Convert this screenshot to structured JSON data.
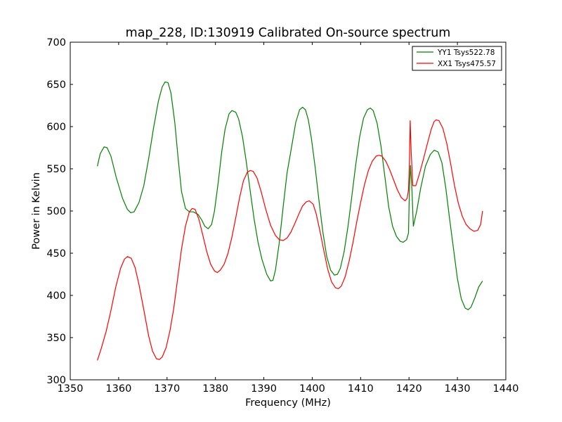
{
  "chart_data": {
    "type": "line",
    "title": "map_228, ID:130919 Calibrated On-source spectrum",
    "xlabel": "Frequency (MHz)",
    "ylabel": "Power in Kelvin",
    "xlim": [
      1350,
      1440
    ],
    "ylim": [
      300,
      700
    ],
    "xticks": [
      "1350",
      "1360",
      "1370",
      "1380",
      "1390",
      "1400",
      "1410",
      "1420",
      "1430",
      "1440"
    ],
    "yticks": [
      "300",
      "350",
      "400",
      "450",
      "500",
      "550",
      "600",
      "650",
      "700"
    ],
    "grid": false,
    "legend_position": "top-right",
    "series": [
      {
        "name": "YY1 Tsys522.78",
        "color": "#008000",
        "points": [
          [
            1355.6,
            553
          ],
          [
            1356.2,
            568
          ],
          [
            1357.0,
            576
          ],
          [
            1357.6,
            575
          ],
          [
            1358.4,
            565
          ],
          [
            1359.5,
            540
          ],
          [
            1360.8,
            515
          ],
          [
            1361.8,
            502
          ],
          [
            1362.5,
            498
          ],
          [
            1363.2,
            499
          ],
          [
            1364.2,
            510
          ],
          [
            1365.2,
            530
          ],
          [
            1366.2,
            562
          ],
          [
            1367.2,
            598
          ],
          [
            1368.2,
            630
          ],
          [
            1369.0,
            647
          ],
          [
            1369.6,
            653
          ],
          [
            1370.2,
            652
          ],
          [
            1370.8,
            640
          ],
          [
            1371.6,
            605
          ],
          [
            1372.3,
            562
          ],
          [
            1373.0,
            523
          ],
          [
            1373.8,
            503
          ],
          [
            1374.6,
            499
          ],
          [
            1375.4,
            499
          ],
          [
            1376.4,
            496
          ],
          [
            1377.2,
            489
          ],
          [
            1377.8,
            482
          ],
          [
            1378.5,
            479
          ],
          [
            1379.2,
            484
          ],
          [
            1379.8,
            500
          ],
          [
            1380.6,
            535
          ],
          [
            1381.3,
            570
          ],
          [
            1382.0,
            597
          ],
          [
            1382.8,
            615
          ],
          [
            1383.4,
            619
          ],
          [
            1384.2,
            617
          ],
          [
            1384.8,
            609
          ],
          [
            1385.6,
            588
          ],
          [
            1386.4,
            557
          ],
          [
            1387.2,
            523
          ],
          [
            1388.0,
            490
          ],
          [
            1388.8,
            463
          ],
          [
            1389.6,
            443
          ],
          [
            1390.6,
            425
          ],
          [
            1391.4,
            417
          ],
          [
            1391.9,
            418
          ],
          [
            1392.4,
            430
          ],
          [
            1393.2,
            463
          ],
          [
            1394.0,
            505
          ],
          [
            1394.8,
            545
          ],
          [
            1395.8,
            578
          ],
          [
            1396.6,
            605
          ],
          [
            1397.4,
            620
          ],
          [
            1398.0,
            623
          ],
          [
            1398.6,
            620
          ],
          [
            1399.2,
            608
          ],
          [
            1399.8,
            587
          ],
          [
            1400.6,
            552
          ],
          [
            1401.4,
            512
          ],
          [
            1402.2,
            475
          ],
          [
            1403.0,
            446
          ],
          [
            1403.8,
            430
          ],
          [
            1404.6,
            424
          ],
          [
            1405.2,
            425
          ],
          [
            1405.8,
            432
          ],
          [
            1406.6,
            452
          ],
          [
            1407.4,
            482
          ],
          [
            1408.2,
            518
          ],
          [
            1409.0,
            555
          ],
          [
            1409.8,
            588
          ],
          [
            1410.6,
            610
          ],
          [
            1411.4,
            620
          ],
          [
            1412.0,
            622
          ],
          [
            1412.6,
            619
          ],
          [
            1413.4,
            604
          ],
          [
            1414.2,
            577
          ],
          [
            1415.0,
            541
          ],
          [
            1415.8,
            505
          ],
          [
            1416.6,
            482
          ],
          [
            1417.4,
            470
          ],
          [
            1418.2,
            464
          ],
          [
            1418.8,
            463
          ],
          [
            1419.5,
            466
          ],
          [
            1419.9,
            474
          ],
          [
            1420.1,
            530
          ],
          [
            1420.3,
            554
          ],
          [
            1420.6,
            525
          ],
          [
            1420.9,
            482
          ],
          [
            1421.6,
            500
          ],
          [
            1422.4,
            527
          ],
          [
            1423.4,
            553
          ],
          [
            1424.4,
            567
          ],
          [
            1425.2,
            572
          ],
          [
            1426.0,
            570
          ],
          [
            1426.8,
            557
          ],
          [
            1427.6,
            527
          ],
          [
            1428.4,
            490
          ],
          [
            1429.2,
            455
          ],
          [
            1430.0,
            420
          ],
          [
            1430.8,
            396
          ],
          [
            1431.6,
            385
          ],
          [
            1432.2,
            383
          ],
          [
            1432.8,
            386
          ],
          [
            1433.6,
            397
          ],
          [
            1434.4,
            410
          ],
          [
            1435.2,
            417
          ]
        ]
      },
      {
        "name": "XX1 Tsys475.57",
        "color": "#ff0000",
        "points": [
          [
            1355.6,
            323
          ],
          [
            1356.4,
            337
          ],
          [
            1357.4,
            357
          ],
          [
            1358.4,
            382
          ],
          [
            1359.4,
            410
          ],
          [
            1360.4,
            432
          ],
          [
            1361.2,
            443
          ],
          [
            1361.8,
            446
          ],
          [
            1362.6,
            444
          ],
          [
            1363.4,
            433
          ],
          [
            1364.2,
            413
          ],
          [
            1365.2,
            383
          ],
          [
            1366.2,
            352
          ],
          [
            1367.0,
            334
          ],
          [
            1367.8,
            325
          ],
          [
            1368.4,
            324
          ],
          [
            1369.0,
            327
          ],
          [
            1369.8,
            338
          ],
          [
            1370.6,
            358
          ],
          [
            1371.4,
            385
          ],
          [
            1372.2,
            420
          ],
          [
            1373.0,
            455
          ],
          [
            1373.8,
            482
          ],
          [
            1374.6,
            499
          ],
          [
            1375.2,
            503
          ],
          [
            1375.8,
            502
          ],
          [
            1376.6,
            490
          ],
          [
            1377.4,
            471
          ],
          [
            1378.2,
            452
          ],
          [
            1379.0,
            437
          ],
          [
            1379.8,
            429
          ],
          [
            1380.4,
            427
          ],
          [
            1381.0,
            430
          ],
          [
            1381.8,
            437
          ],
          [
            1382.6,
            450
          ],
          [
            1383.4,
            469
          ],
          [
            1384.2,
            492
          ],
          [
            1385.0,
            516
          ],
          [
            1385.8,
            536
          ],
          [
            1386.6,
            546
          ],
          [
            1387.2,
            548
          ],
          [
            1387.8,
            547
          ],
          [
            1388.6,
            539
          ],
          [
            1389.4,
            524
          ],
          [
            1390.4,
            502
          ],
          [
            1391.4,
            483
          ],
          [
            1392.4,
            471
          ],
          [
            1393.2,
            466
          ],
          [
            1394.0,
            465
          ],
          [
            1394.8,
            468
          ],
          [
            1395.6,
            475
          ],
          [
            1396.4,
            485
          ],
          [
            1397.2,
            496
          ],
          [
            1398.0,
            506
          ],
          [
            1398.8,
            511
          ],
          [
            1399.4,
            512
          ],
          [
            1400.2,
            508
          ],
          [
            1400.8,
            497
          ],
          [
            1401.6,
            476
          ],
          [
            1402.4,
            453
          ],
          [
            1403.2,
            431
          ],
          [
            1404.0,
            416
          ],
          [
            1404.8,
            409
          ],
          [
            1405.4,
            408
          ],
          [
            1406.0,
            411
          ],
          [
            1406.8,
            422
          ],
          [
            1407.6,
            440
          ],
          [
            1408.4,
            462
          ],
          [
            1409.2,
            487
          ],
          [
            1410.0,
            510
          ],
          [
            1410.8,
            531
          ],
          [
            1411.6,
            548
          ],
          [
            1412.4,
            559
          ],
          [
            1413.2,
            565
          ],
          [
            1413.8,
            566
          ],
          [
            1414.4,
            565
          ],
          [
            1415.2,
            559
          ],
          [
            1416.0,
            549
          ],
          [
            1416.8,
            537
          ],
          [
            1417.6,
            525
          ],
          [
            1418.4,
            516
          ],
          [
            1419.2,
            512
          ],
          [
            1419.6,
            515
          ],
          [
            1419.9,
            525
          ],
          [
            1420.1,
            560
          ],
          [
            1420.25,
            607
          ],
          [
            1420.45,
            570
          ],
          [
            1420.8,
            530
          ],
          [
            1421.4,
            530
          ],
          [
            1422.2,
            545
          ],
          [
            1423.0,
            562
          ],
          [
            1423.8,
            580
          ],
          [
            1424.6,
            597
          ],
          [
            1425.2,
            606
          ],
          [
            1425.6,
            608
          ],
          [
            1426.2,
            607
          ],
          [
            1427.0,
            598
          ],
          [
            1427.8,
            580
          ],
          [
            1428.6,
            556
          ],
          [
            1429.4,
            530
          ],
          [
            1430.2,
            509
          ],
          [
            1431.0,
            494
          ],
          [
            1431.8,
            484
          ],
          [
            1432.6,
            479
          ],
          [
            1433.4,
            476
          ],
          [
            1434.2,
            477
          ],
          [
            1434.8,
            484
          ],
          [
            1435.2,
            500
          ]
        ]
      }
    ]
  }
}
